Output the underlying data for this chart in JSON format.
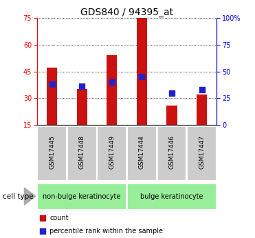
{
  "title": "GDS840 / 94395_at",
  "samples": [
    "GSM17445",
    "GSM17448",
    "GSM17449",
    "GSM17444",
    "GSM17446",
    "GSM17447"
  ],
  "counts": [
    47,
    35,
    54,
    75,
    26,
    32
  ],
  "percentile_ranks": [
    38,
    36,
    40,
    45,
    30,
    33
  ],
  "ylim_left": [
    15,
    75
  ],
  "ylim_right": [
    0,
    100
  ],
  "yticks_left": [
    15,
    30,
    45,
    60,
    75
  ],
  "yticks_right": [
    0,
    25,
    50,
    75,
    100
  ],
  "ytick_labels_right": [
    "0",
    "25",
    "50",
    "75",
    "100%"
  ],
  "bar_color": "#cc1111",
  "dot_color": "#2222cc",
  "group1_label": "non-bulge keratinocyte",
  "group2_label": "bulge keratinocyte",
  "group1_indices": [
    0,
    1,
    2
  ],
  "group2_indices": [
    3,
    4,
    5
  ],
  "sample_box_color": "#cccccc",
  "group_box_color": "#99ee99",
  "cell_type_label": "cell type",
  "legend_count": "count",
  "legend_pct": "percentile rank within the sample",
  "bar_width": 0.35,
  "dot_size": 28,
  "baseline": 15,
  "title_fontsize": 10,
  "tick_fontsize": 7,
  "legend_fontsize": 7,
  "group_label_fontsize": 7,
  "sample_fontsize": 6.5
}
